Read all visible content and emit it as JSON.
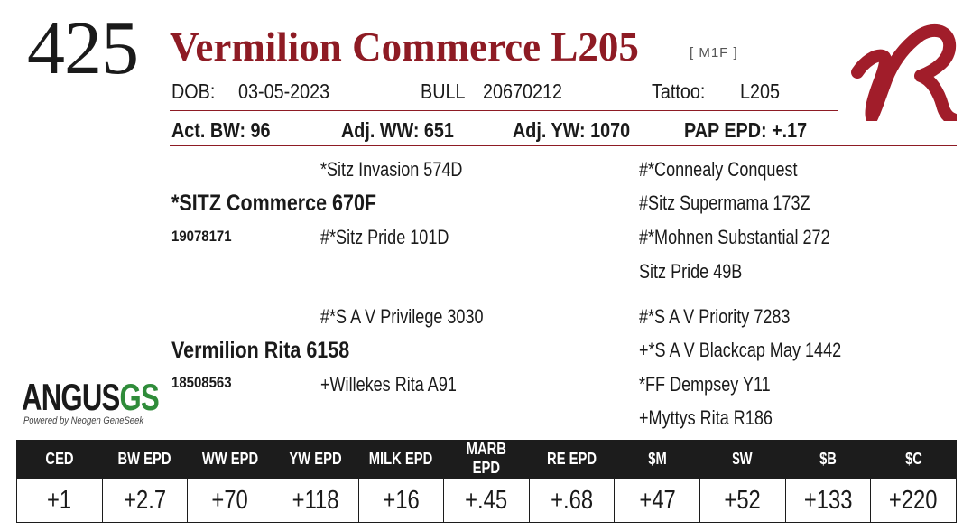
{
  "lot": "425",
  "animal": {
    "name": "Vermilion Commerce L205",
    "flags": "[ M1F ]",
    "dob_label": "DOB:",
    "dob": "03-05-2023",
    "sex": "BULL",
    "reg": "20670212",
    "tattoo_label": "Tattoo:",
    "tattoo": "L205"
  },
  "performance": {
    "bw": "Act. BW: 96",
    "ww": "Adj. WW: 651",
    "yw": "Adj. YW: 1070",
    "pap": "PAP EPD: +.17"
  },
  "pedigree": {
    "sire": "*SITZ Commerce 670F",
    "sire_reg": "19078171",
    "dam": "Vermilion Rita 6158",
    "dam_reg": "18508563",
    "sire_sire": "*Sitz Invasion 574D",
    "sire_dam": "#*Sitz Pride 101D",
    "dam_sire": "#*S A V Privilege 3030",
    "dam_dam": "+Willekes Rita A91",
    "ss_sire": "#*Connealy Conquest",
    "ss_dam": "#Sitz Supermama 173Z",
    "sd_sire": "#*Mohnen Substantial 272",
    "sd_dam": "Sitz Pride 49B",
    "ds_sire": "#*S A V Priority 7283",
    "ds_dam": "+*S A V Blackcap May 1442",
    "dd_sire": "*FF Dempsey Y11",
    "dd_dam": "+Myttys Rita R186"
  },
  "logo": {
    "main": "ANGUS",
    "accent": "GS",
    "sub": "Powered by Neogen GeneSeek"
  },
  "brand_icon": "vr-brand-mark",
  "colors": {
    "title": "#8e1b24",
    "rule": "#8e1b24",
    "header_bg": "#1c1c1c",
    "logo_accent": "#2f8c3a"
  },
  "epds": {
    "headers": [
      "CED",
      "BW EPD",
      "WW EPD",
      "YW EPD",
      "MILK EPD",
      "MARB EPD",
      "RE EPD",
      "$M",
      "$W",
      "$B",
      "$C"
    ],
    "values": [
      "+1",
      "+2.7",
      "+70",
      "+118",
      "+16",
      "+.45",
      "+.68",
      "+47",
      "+52",
      "+133",
      "+220"
    ]
  }
}
